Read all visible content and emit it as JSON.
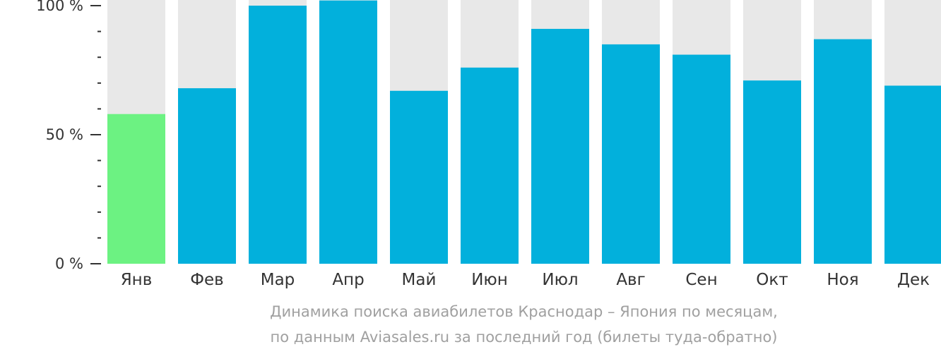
{
  "chart_data": {
    "type": "bar",
    "categories": [
      "Янв",
      "Фев",
      "Мар",
      "Апр",
      "Май",
      "Июн",
      "Июл",
      "Авг",
      "Сен",
      "Окт",
      "Ноя",
      "Дек"
    ],
    "values": [
      58,
      68,
      100,
      102,
      67,
      76,
      91,
      85,
      81,
      71,
      87,
      69
    ],
    "highlight_index": 0,
    "ylim": [
      0,
      100
    ],
    "yticks": [
      {
        "value": 0,
        "label": "0 %"
      },
      {
        "value": 50,
        "label": "50 %"
      },
      {
        "value": 100,
        "label": "100 %"
      }
    ],
    "minor_tick_step": 10,
    "background_bars": true,
    "colors": {
      "bar": "#02b0dc",
      "highlight": "#6cf282",
      "background": "#e8e8e8",
      "axis": "#333333"
    }
  },
  "caption": {
    "line1": "Динамика поиска авиабилетов Краснодар – Япония по месяцам,",
    "line2": "по данным Aviasales.ru за последний год (билеты туда-обратно)"
  }
}
